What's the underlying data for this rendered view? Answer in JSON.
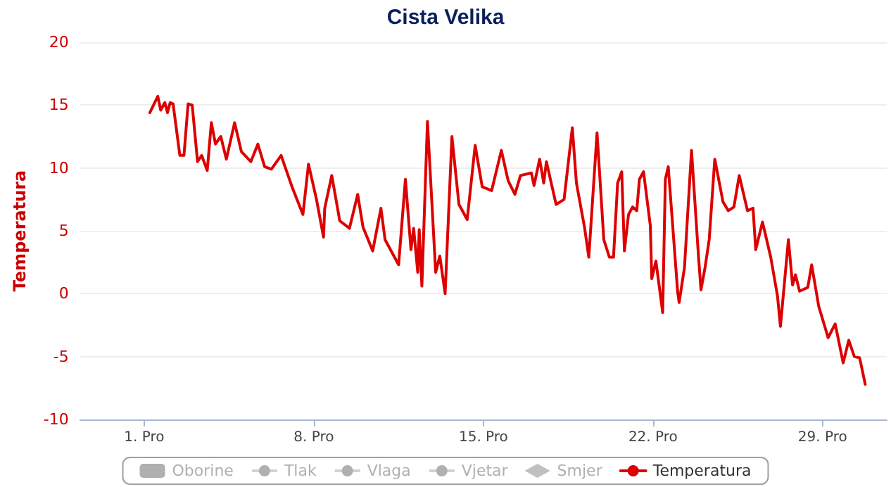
{
  "chart_data": {
    "type": "line",
    "title": "Cista Velika",
    "ylabel": "Temperatura",
    "xlim": [
      -1.65,
      31.65
    ],
    "xticks": [
      {
        "value": 1,
        "label": "1. Pro"
      },
      {
        "value": 8,
        "label": "8. Pro"
      },
      {
        "value": 15,
        "label": "15. Pro"
      },
      {
        "value": 22,
        "label": "22. Pro"
      },
      {
        "value": 29,
        "label": "29. Pro"
      }
    ],
    "ylim": [
      -10,
      20
    ],
    "yticks": [
      -10,
      -5,
      0,
      5,
      10,
      15,
      20
    ],
    "grid": "y",
    "legend": "bottom",
    "marker": "none",
    "line_style": "solid",
    "series": [
      {
        "name": "Oborine",
        "type": "bar"
      },
      {
        "name": "Tlak",
        "type": "line"
      },
      {
        "name": "Vlaga",
        "type": "line"
      },
      {
        "name": "Vjetar",
        "type": "line"
      },
      {
        "name": "Smjer",
        "type": "scatter",
        "marker": "diamond"
      },
      {
        "name": "Temperatura",
        "color": "#dd0000",
        "x": [
          1.23,
          1.56,
          1.68,
          1.85,
          1.96,
          2.07,
          2.19,
          2.47,
          2.64,
          2.81,
          2.98,
          3.2,
          3.37,
          3.6,
          3.77,
          3.94,
          4.16,
          4.39,
          4.73,
          5.01,
          5.4,
          5.69,
          5.97,
          6.25,
          6.65,
          7.1,
          7.55,
          7.78,
          8.11,
          8.4,
          8.45,
          8.74,
          9.07,
          9.47,
          9.81,
          10.03,
          10.43,
          10.77,
          10.94,
          11.5,
          11.78,
          12.01,
          12.12,
          12.29,
          12.35,
          12.46,
          12.69,
          13.03,
          13.2,
          13.42,
          13.7,
          13.99,
          14.33,
          14.66,
          14.95,
          15.34,
          15.74,
          16.02,
          16.3,
          16.53,
          16.98,
          17.09,
          17.32,
          17.49,
          17.6,
          18.0,
          18.33,
          18.67,
          18.84,
          19.18,
          19.35,
          19.69,
          19.97,
          20.2,
          20.37,
          20.54,
          20.71,
          20.82,
          20.99,
          21.16,
          21.33,
          21.44,
          21.61,
          21.89,
          21.95,
          22.12,
          22.4,
          22.51,
          22.63,
          23.02,
          23.08,
          23.3,
          23.59,
          23.87,
          23.98,
          24.15,
          24.32,
          24.55,
          24.89,
          25.11,
          25.34,
          25.56,
          25.9,
          26.13,
          26.24,
          26.52,
          26.86,
          27.14,
          27.26,
          27.59,
          27.76,
          27.88,
          28.05,
          28.39,
          28.55,
          28.84,
          29.23,
          29.52,
          29.85,
          30.08,
          30.31,
          30.53,
          30.76
        ],
        "values": [
          14.4,
          15.7,
          14.6,
          15.2,
          14.4,
          15.2,
          15.1,
          11.0,
          11.0,
          15.1,
          15.0,
          10.5,
          11.0,
          9.8,
          13.6,
          11.9,
          12.5,
          10.7,
          13.6,
          11.3,
          10.5,
          11.9,
          10.1,
          9.9,
          11.0,
          8.5,
          6.3,
          10.3,
          7.5,
          4.5,
          6.8,
          9.4,
          5.8,
          5.2,
          7.9,
          5.3,
          3.4,
          6.8,
          4.3,
          2.3,
          9.1,
          3.5,
          5.2,
          1.7,
          5.1,
          0.6,
          13.7,
          1.7,
          3.0,
          0.0,
          12.5,
          7.1,
          5.9,
          11.8,
          8.5,
          8.2,
          11.4,
          9.0,
          7.9,
          9.4,
          9.6,
          8.6,
          10.7,
          8.8,
          10.5,
          7.1,
          7.5,
          13.2,
          8.8,
          5.2,
          2.9,
          12.8,
          4.3,
          2.9,
          2.9,
          8.8,
          9.7,
          3.4,
          6.3,
          6.9,
          6.6,
          9.1,
          9.7,
          5.4,
          1.2,
          2.6,
          -1.5,
          9.1,
          10.1,
          0.1,
          -0.7,
          2.1,
          11.4,
          3.2,
          0.3,
          2.1,
          4.3,
          10.7,
          7.3,
          6.6,
          6.9,
          9.4,
          6.6,
          6.8,
          3.5,
          5.7,
          2.9,
          -0.2,
          -2.6,
          4.3,
          0.7,
          1.5,
          0.2,
          0.5,
          2.3,
          -1.0,
          -3.5,
          -2.4,
          -5.5,
          -3.7,
          -5.0,
          -5.1,
          -7.2
        ]
      }
    ]
  }
}
